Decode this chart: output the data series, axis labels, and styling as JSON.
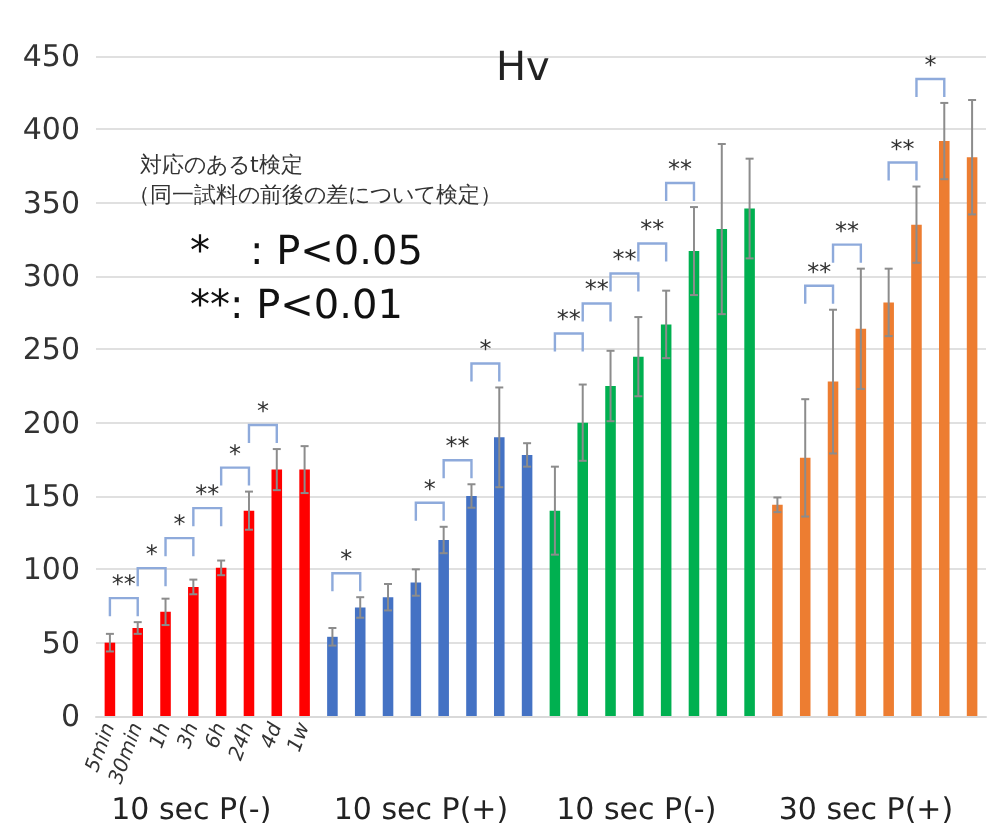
{
  "chart_data": {
    "type": "bar",
    "title": "Hv",
    "categories": [
      "5min",
      "30min",
      "1h",
      "3h",
      "6h",
      "24h",
      "4d",
      "1w",
      null,
      null,
      null,
      null,
      null,
      null,
      null,
      null,
      null,
      null,
      null,
      null,
      null,
      null,
      null,
      null,
      null,
      null,
      null,
      null,
      null,
      null,
      null,
      null
    ],
    "values": [
      50,
      60,
      71,
      88,
      101,
      140,
      168,
      168,
      54,
      74,
      81,
      91,
      120,
      150,
      190,
      178,
      140,
      200,
      225,
      245,
      267,
      317,
      332,
      346,
      144,
      176,
      228,
      264,
      282,
      335,
      392,
      381
    ],
    "errors": [
      6,
      4,
      9,
      5,
      5,
      13,
      14,
      16,
      6,
      7,
      9,
      9,
      9,
      8,
      34,
      8,
      30,
      26,
      24,
      27,
      23,
      30,
      58,
      34,
      5,
      40,
      49,
      41,
      23,
      26,
      26,
      39
    ],
    "colors": [
      "#ff0000",
      "#ff0000",
      "#ff0000",
      "#ff0000",
      "#ff0000",
      "#ff0000",
      "#ff0000",
      "#ff0000",
      "#4472c4",
      "#4472c4",
      "#4472c4",
      "#4472c4",
      "#4472c4",
      "#4472c4",
      "#4472c4",
      "#4472c4",
      "#00b050",
      "#00b050",
      "#00b050",
      "#00b050",
      "#00b050",
      "#00b050",
      "#00b050",
      "#00b050",
      "#ed7d31",
      "#ed7d31",
      "#ed7d31",
      "#ed7d31",
      "#ed7d31",
      "#ed7d31",
      "#ed7d31",
      "#ed7d31"
    ],
    "ylim": [
      0,
      450
    ],
    "yticks": [
      0,
      50,
      100,
      150,
      200,
      250,
      300,
      350,
      400,
      450
    ],
    "grid": "y",
    "annotations": [
      "10 sec P(-)",
      "10 sec P(+)",
      "10 sec P(-)",
      "30 sec P(+)",
      "対応のあるt検定",
      "（同一試料の前後の差について検定）",
      "*　: P<0.05",
      "**: P<0.01",
      "**",
      "*",
      "*",
      "**",
      "*",
      "*",
      "*",
      "*",
      "**",
      "*",
      "**",
      "**",
      "**",
      "**",
      "**",
      "**",
      "**",
      "**",
      "*"
    ]
  }
}
